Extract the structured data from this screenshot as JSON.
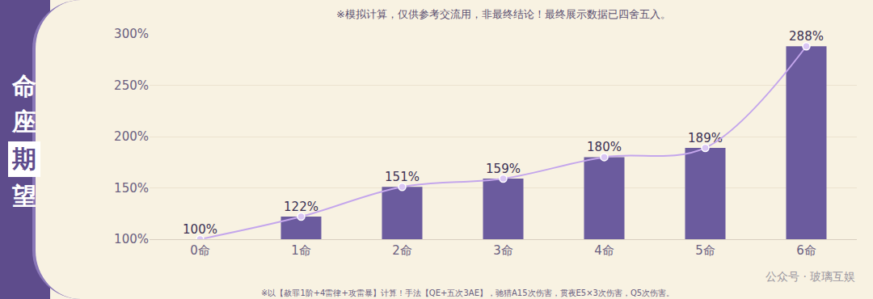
{
  "chart_data": {
    "type": "bar",
    "note": "※模拟计算，仅供参考交流用，非最终结论！最终展示数据已四舍五入。",
    "side_label": "命座期望",
    "footnote": "※以【赦罪1阶+4雷律+攻雷暴】计算！手法【QE+五次3AE】，驰猎A15次伤害，贯夜E5×3次伤害，Q5次伤害。",
    "watermark": "公众号 · 玻璃互娱",
    "categories": [
      "0命",
      "1命",
      "2命",
      "3命",
      "4命",
      "5命",
      "6命"
    ],
    "series": [
      {
        "type": "bar",
        "color": "#6b5b9e",
        "values": [
          100,
          122,
          151,
          159,
          180,
          189,
          288
        ],
        "value_labels": [
          "100%",
          "122%",
          "151%",
          "159%",
          "180%",
          "189%",
          "288%"
        ]
      },
      {
        "type": "line",
        "color": "#c4a6ec",
        "marker": "circle",
        "line_style": "solid",
        "values": [
          100,
          122,
          151,
          159,
          180,
          189,
          288
        ]
      }
    ],
    "ylim": [
      100,
      300
    ],
    "yticks": [
      {
        "value": 100,
        "label": "100%"
      },
      {
        "value": 150,
        "label": "150%"
      },
      {
        "value": 200,
        "label": "200%"
      },
      {
        "value": 250,
        "label": "250%"
      },
      {
        "value": 300,
        "label": "300%"
      }
    ],
    "grid": true,
    "data_labels": true
  }
}
